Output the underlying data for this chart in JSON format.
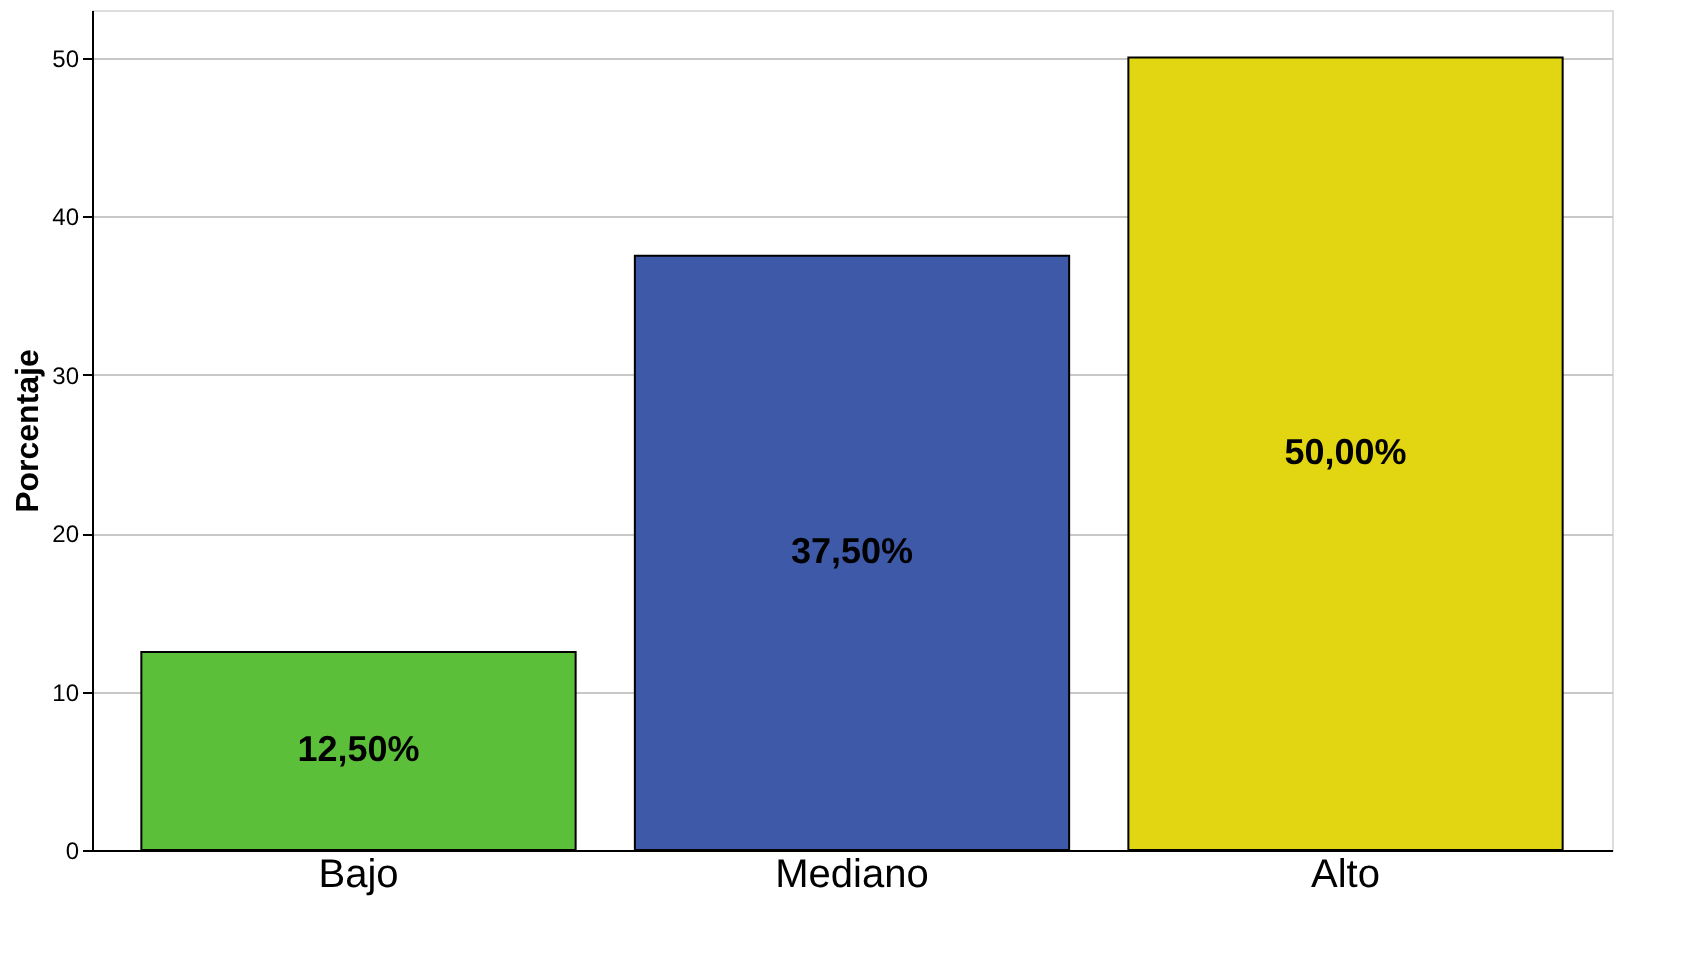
{
  "chart_data": {
    "type": "bar",
    "ylabel": "Porcentaje",
    "categories": [
      "Bajo",
      "Mediano",
      "Alto"
    ],
    "values": [
      12.5,
      37.5,
      50
    ],
    "colors": [
      "#5bbf3a",
      "#3d59a8",
      "#e2d612"
    ],
    "value_labels": [
      "12,50%",
      "37,50%",
      "50,00%"
    ],
    "ylim": [
      0,
      53
    ],
    "yticks": [
      0,
      10,
      20,
      30,
      40,
      50
    ],
    "grid": "y"
  }
}
